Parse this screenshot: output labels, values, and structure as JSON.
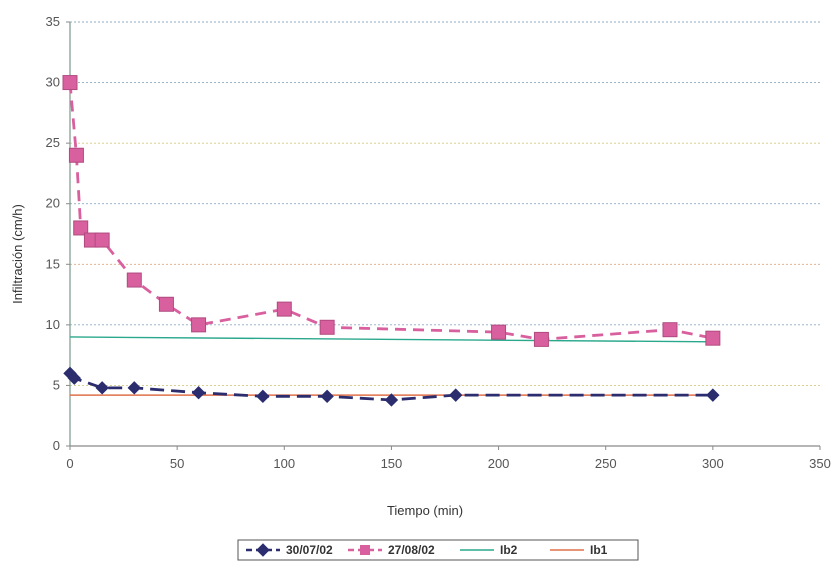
{
  "chart_data": {
    "type": "line",
    "title": "",
    "xlabel": "Tiempo (min)",
    "ylabel": "Infiltración (cm/h)",
    "xlim": [
      0,
      350
    ],
    "ylim": [
      0,
      35
    ],
    "xticks": [
      0,
      50,
      100,
      150,
      200,
      250,
      300,
      350
    ],
    "yticks": [
      0,
      5,
      10,
      15,
      20,
      25,
      30,
      35
    ],
    "grid": "horizontal",
    "legend_position": "bottom",
    "series": [
      {
        "name": "30/07/02",
        "color": "#2b2d6e",
        "marker": "diamond",
        "line": "long-dash",
        "x": [
          0,
          2,
          15,
          30,
          60,
          90,
          120,
          150,
          180,
          300
        ],
        "y": [
          6,
          5.6,
          4.8,
          4.8,
          4.4,
          4.1,
          4.1,
          3.8,
          4.2,
          4.2
        ]
      },
      {
        "name": "27/08/02",
        "color": "#d9609e",
        "marker": "square",
        "line": "dash",
        "x": [
          0,
          3,
          5,
          10,
          15,
          30,
          45,
          60,
          100,
          120,
          200,
          220,
          280,
          300
        ],
        "y": [
          30,
          24,
          18,
          17,
          17,
          13.7,
          11.7,
          10,
          11.3,
          9.8,
          9.4,
          8.8,
          9.6,
          8.9
        ]
      },
      {
        "name": "Ib2",
        "color": "#2aa88c",
        "marker": "none",
        "line": "solid",
        "x": [
          0,
          300
        ],
        "y": [
          9,
          8.6
        ]
      },
      {
        "name": "Ib1",
        "color": "#e0704a",
        "marker": "none",
        "line": "solid",
        "x": [
          0,
          300
        ],
        "y": [
          4.2,
          4.2
        ]
      }
    ]
  }
}
